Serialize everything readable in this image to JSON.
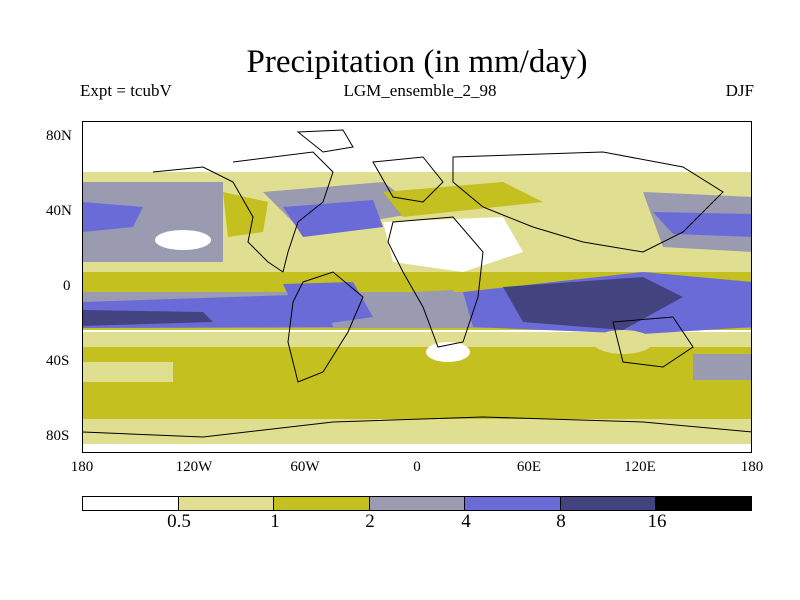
{
  "title": "Precipitation (in mm/day)",
  "experiment": "Expt = tcubV",
  "run": "LGM_ensemble_2_98",
  "season": "DJF",
  "lat_labels": [
    "80N",
    "40N",
    "0",
    "40S",
    "80S"
  ],
  "lon_labels": [
    "180",
    "120W",
    "60W",
    "0",
    "60E",
    "120E",
    "180"
  ],
  "colorbar": {
    "colors": [
      "#ffffff",
      "#e0de90",
      "#c3c020",
      "#9a9ab0",
      "#6b6bd8",
      "#434380",
      "#000000"
    ],
    "labels": [
      "0.5",
      "1",
      "2",
      "4",
      "8",
      "16"
    ]
  }
}
